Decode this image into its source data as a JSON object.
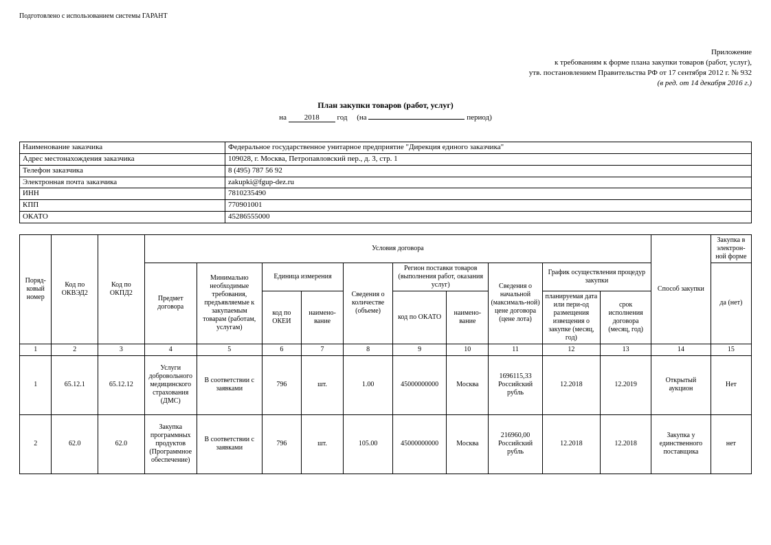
{
  "prep_note": "Подготовлено с использованием системы ГАРАНТ",
  "appendix": {
    "l1": "Приложение",
    "l2": "к требованиям к форме плана закупки товаров (работ, услуг),",
    "l3": "утв. постановлением Правительства РФ от 17 сентября 2012 г. № 932",
    "l4": "(в ред. от 14 декабря 2016 г.)"
  },
  "title": "План закупки товаров (работ, услуг)",
  "period": {
    "na_label": "на",
    "year": "2018",
    "god_label": "год",
    "open": "(на",
    "close": "период)"
  },
  "info_rows": [
    {
      "label": "Наименование заказчика",
      "value": "Федеральное государственное унитарное предприятие \"Дирекция единого заказчика\""
    },
    {
      "label": "Адрес местонахождения заказчика",
      "value": "109028, г. Москва, Петропавловский пер., д. 3, стр. 1"
    },
    {
      "label": "Телефон заказчика",
      "value": "8 (495) 787 56 92"
    },
    {
      "label": "Электронная почта заказчика",
      "value": "zakupki@fgup-dez.ru"
    },
    {
      "label": "ИНН",
      "value": "7810235490"
    },
    {
      "label": "КПП",
      "value": "770901001"
    },
    {
      "label": "ОКАТО",
      "value": "45286555000"
    }
  ],
  "headers": {
    "col1": "Поряд-ковый номер",
    "col2": "Код по ОКВЭД2",
    "col3": "Код по ОКПД2",
    "conditions": "Условия договора",
    "col4": "Предмет договора",
    "col5": "Минимально необходимые требования, предъявляемые к закупаемым товарам (работам, услугам)",
    "unit": "Единица измерения",
    "col6": "код по ОКЕИ",
    "col7": "наимено-вание",
    "col8": "Сведения о количестве (объеме)",
    "region": "Регион поставки товаров (выполнения работ, оказания услуг)",
    "col9": "код по ОКАТО",
    "col10": "наимено-вание",
    "col11": "Сведения о начальной (максималь-ной) цене договора (цене лота)",
    "schedule": "График осуществления процедур закупки",
    "col12": "планируемая дата или пери-од размещения извещения о закупке (месяц, год)",
    "col13": "срок исполнения договора (месяц, год)",
    "col14": "Способ закупки",
    "col15_top": "Закупка в электрон-ной форме",
    "col15_sub": "да (нет)"
  },
  "colnums": [
    "1",
    "2",
    "3",
    "4",
    "5",
    "6",
    "7",
    "8",
    "9",
    "10",
    "11",
    "12",
    "13",
    "14",
    "15"
  ],
  "rows": [
    {
      "n": "1",
      "okved": "65.12.1",
      "okpd": "65.12.12",
      "subject": "Услуги добровольного медицинского страхования (ДМС)",
      "req": "В соответствии с заявками",
      "okei": "796",
      "unit": "шт.",
      "qty": "1.00",
      "okato": "45000000000",
      "region": "Москва",
      "price": "1696115,33 Российский рубль",
      "plan_date": "12.2018",
      "exec_date": "12.2019",
      "method": "Открытый аукцион",
      "eform": "Нет"
    },
    {
      "n": "2",
      "okved": "62.0",
      "okpd": "62.0",
      "subject": "Закупка программных продуктов (Программное обеспечение)",
      "req": "В соответствии с заявками",
      "okei": "796",
      "unit": "шт.",
      "qty": "105.00",
      "okato": "45000000000",
      "region": "Москва",
      "price": "216960,00 Российский рубль",
      "plan_date": "12.2018",
      "exec_date": "12.2018",
      "method": "Закупка у единственного поставщика",
      "eform": "нет"
    }
  ]
}
